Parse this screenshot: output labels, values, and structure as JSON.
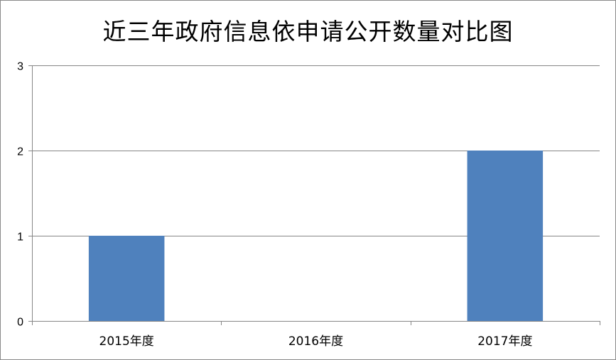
{
  "chart_data": {
    "type": "bar",
    "title": "近三年政府信息依申请公开数量对比图",
    "categories": [
      "2015年度",
      "2016年度",
      "2017年度"
    ],
    "values": [
      1,
      0,
      2
    ],
    "ylim": [
      0,
      3
    ],
    "yticks": [
      "0",
      "1",
      "2",
      "3"
    ],
    "xlabel": "",
    "ylabel": "",
    "grid": true,
    "legend": "none",
    "bar_color": "#4f81bd",
    "gridline_color": "#868686",
    "axis_color": "#868686"
  }
}
